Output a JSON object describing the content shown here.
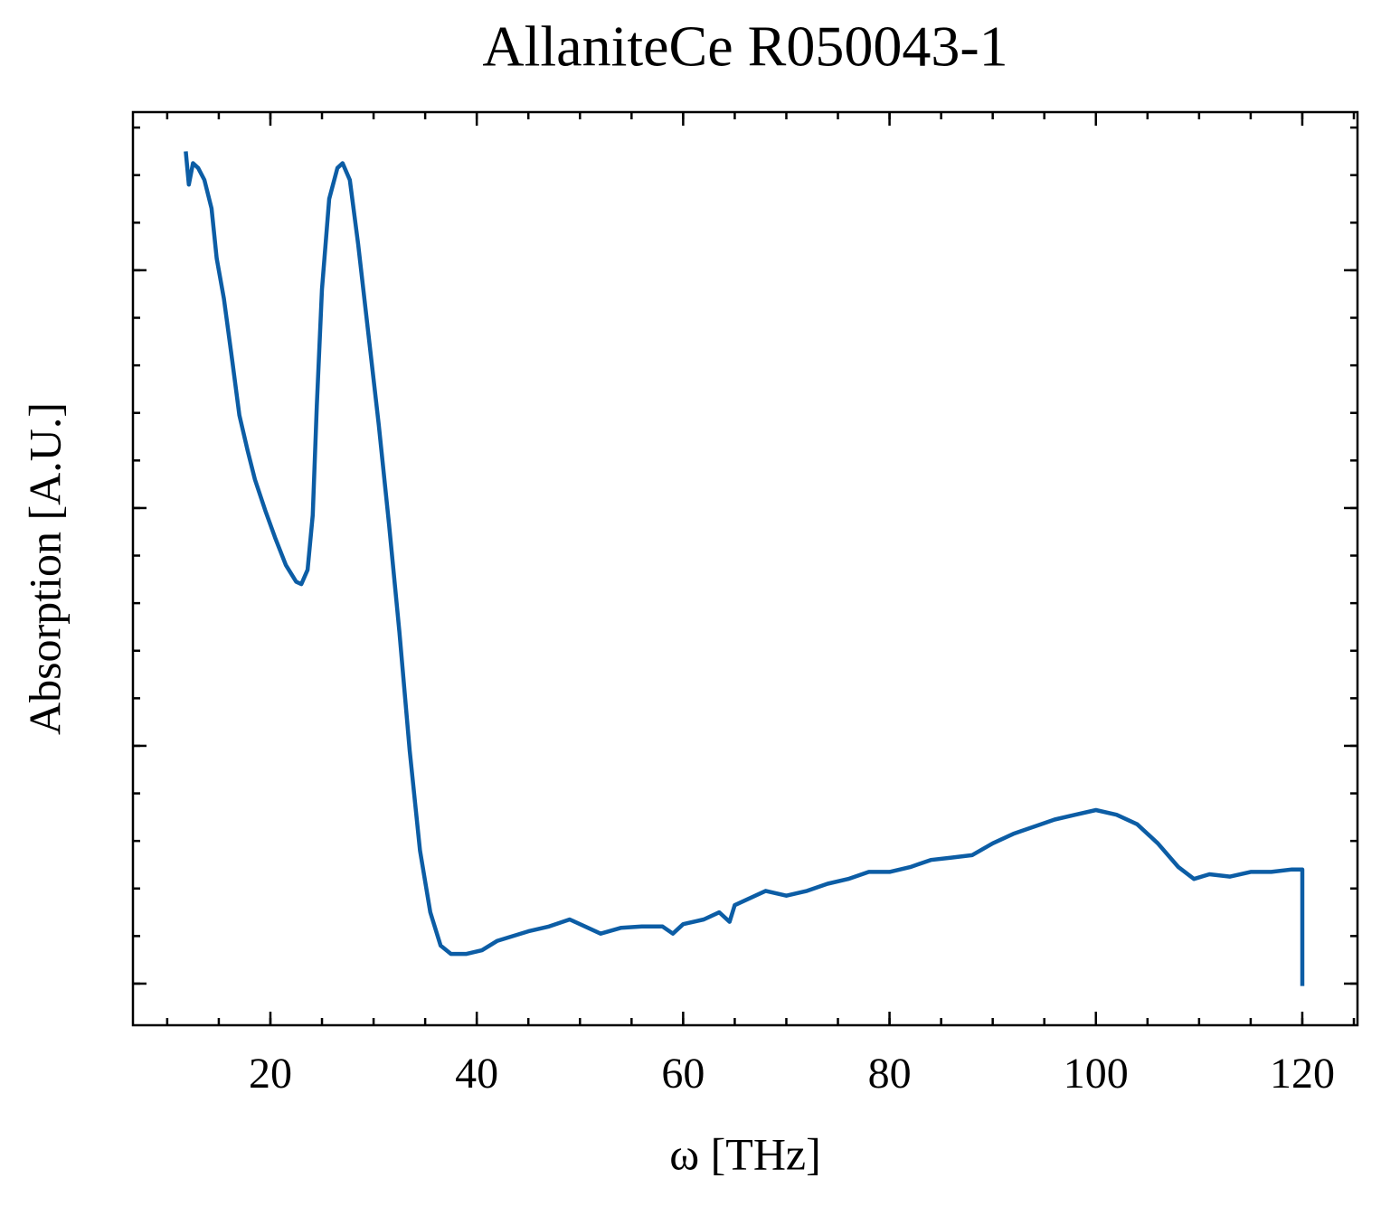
{
  "chart_data": {
    "type": "line",
    "title": "AllaniteCe R050043-1",
    "x_label": "ω [THz]",
    "y_label": "Absorption [A.U.]",
    "xlim": [
      6.68,
      125.35
    ],
    "ylim": [
      -0.175,
      3.665
    ],
    "xticks": [
      20,
      40,
      60,
      80,
      100,
      120
    ],
    "yticks": [
      0,
      1,
      2,
      3
    ],
    "x_minor_step": 5,
    "y_minor_step": 0.2,
    "y_tick_labels": false,
    "series": [
      {
        "name": "AllaniteCe R050043-1",
        "color": "#0c5da5",
        "x": [
          11.8,
          12.1,
          12.5,
          13.0,
          13.6,
          14.3,
          14.8,
          15.5,
          16.3,
          17.0,
          17.8,
          18.5,
          19.5,
          20.5,
          21.5,
          22.5,
          23.0,
          23.6,
          24.1,
          24.5,
          25.0,
          25.7,
          26.5,
          27.0,
          27.7,
          28.5,
          29.5,
          30.5,
          31.5,
          32.5,
          33.5,
          34.5,
          35.5,
          36.5,
          37.5,
          39,
          40.5,
          42,
          43.5,
          45,
          47,
          49,
          50.5,
          52,
          54,
          56,
          58,
          59,
          60,
          62,
          63.5,
          64.5,
          65,
          66,
          68,
          70,
          72,
          74,
          76,
          78,
          80,
          82,
          84,
          86,
          88,
          90,
          92,
          94,
          96,
          98,
          100,
          102,
          104,
          106,
          108,
          109.5,
          111,
          113,
          115,
          117,
          119,
          120,
          120
        ],
        "values": [
          3.5,
          3.36,
          3.45,
          3.43,
          3.38,
          3.26,
          3.05,
          2.88,
          2.62,
          2.39,
          2.24,
          2.12,
          1.99,
          1.87,
          1.76,
          1.69,
          1.68,
          1.74,
          1.97,
          2.43,
          2.92,
          3.3,
          3.43,
          3.45,
          3.38,
          3.11,
          2.73,
          2.35,
          1.93,
          1.48,
          0.98,
          0.56,
          0.3,
          0.16,
          0.125,
          0.125,
          0.14,
          0.18,
          0.2,
          0.22,
          0.24,
          0.27,
          0.24,
          0.21,
          0.235,
          0.24,
          0.24,
          0.21,
          0.25,
          0.27,
          0.3,
          0.26,
          0.33,
          0.35,
          0.39,
          0.37,
          0.39,
          0.42,
          0.44,
          0.47,
          0.47,
          0.49,
          0.52,
          0.53,
          0.54,
          0.59,
          0.63,
          0.66,
          0.69,
          0.71,
          0.73,
          0.71,
          0.67,
          0.59,
          0.49,
          0.44,
          0.46,
          0.45,
          0.47,
          0.47,
          0.48,
          0.48,
          -0.01
        ]
      }
    ]
  }
}
